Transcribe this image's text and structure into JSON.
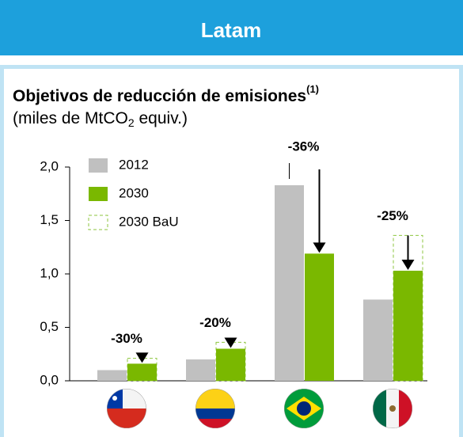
{
  "header": {
    "title": "Latam"
  },
  "chart_data": {
    "type": "bar",
    "title": "Objetivos de reducción de emisiones",
    "title_note": "(1)",
    "subtitle": [
      "(miles de MtCO",
      "2",
      " equiv.)"
    ],
    "categories": [
      null,
      null,
      null,
      null
    ],
    "series": [
      {
        "name": "2012",
        "color": "#c0c0c0",
        "values": [
          0.1,
          0.2,
          1.83,
          0.76
        ]
      },
      {
        "name": "2030",
        "color": "#7ab800",
        "values": [
          0.16,
          0.3,
          1.19,
          1.03
        ]
      },
      {
        "name": "2030 BaU",
        "color": "#8dc63f",
        "values": [
          0.21,
          0.36,
          null,
          1.36
        ]
      }
    ],
    "annotations": [
      "-30%",
      "-20%",
      "-36%",
      "-25%"
    ],
    "ylim": [
      0,
      2
    ],
    "yticks": [
      {
        "value": 0,
        "label": "0,0"
      },
      {
        "value": 0.5,
        "label": "0,5"
      },
      {
        "value": 1,
        "label": "1,0"
      },
      {
        "value": 1.5,
        "label": "1,5"
      },
      {
        "value": 2,
        "label": "2,0"
      }
    ],
    "legend": "top-left"
  }
}
